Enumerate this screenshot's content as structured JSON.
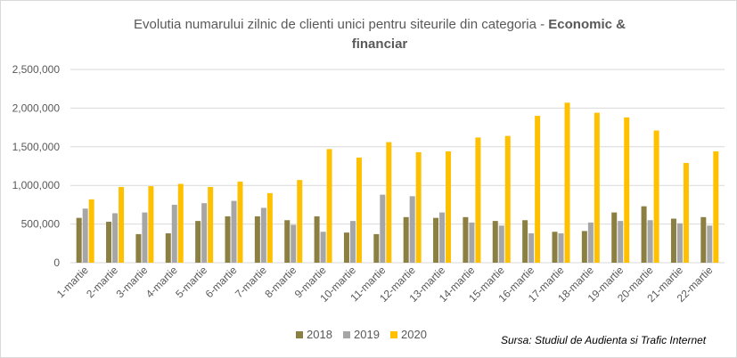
{
  "chart_data": {
    "type": "bar",
    "title": "Evolutia numarului zilnic de clienti unici pentru siteurile din categoria - ",
    "title_bold": "Economic & financiar",
    "title_line1": "Evolutia numarului zilnic de clienti unici pentru siteurile din categoria - ",
    "title_line1_bold": "Economic &",
    "title_line2_bold": "financiar",
    "xlabel": "",
    "ylabel": "",
    "ylim": [
      0,
      2500000
    ],
    "yticks": [
      "0",
      "500,000",
      "1,000,000",
      "1,500,000",
      "2,000,000",
      "2,500,000"
    ],
    "ytick_values": [
      0,
      500000,
      1000000,
      1500000,
      2000000,
      2500000
    ],
    "grid": true,
    "legend_position": "bottom",
    "categories": [
      "1-martie",
      "2-martie",
      "3-martie",
      "4-martie",
      "5-martie",
      "6-martie",
      "7-martie",
      "8-martie",
      "9-martie",
      "10-martie",
      "11-martie",
      "12-martie",
      "13-martie",
      "14-martie",
      "15-martie",
      "16-martie",
      "17-martie",
      "18-martie",
      "19-martie",
      "20-martie",
      "21-martie",
      "22-martie"
    ],
    "series": [
      {
        "name": "2018",
        "color": "#8c7f42",
        "values": [
          580000,
          530000,
          370000,
          380000,
          540000,
          600000,
          600000,
          550000,
          600000,
          390000,
          370000,
          590000,
          580000,
          590000,
          540000,
          550000,
          400000,
          410000,
          650000,
          730000,
          570000,
          590000
        ]
      },
      {
        "name": "2019",
        "color": "#a6a6a6",
        "values": [
          700000,
          640000,
          650000,
          750000,
          770000,
          800000,
          710000,
          490000,
          400000,
          540000,
          880000,
          860000,
          650000,
          520000,
          480000,
          380000,
          380000,
          520000,
          540000,
          550000,
          510000,
          480000
        ]
      },
      {
        "name": "2020",
        "color": "#ffc000",
        "values": [
          820000,
          980000,
          990000,
          1020000,
          980000,
          1050000,
          900000,
          1070000,
          1470000,
          1360000,
          1560000,
          1430000,
          1440000,
          1620000,
          1640000,
          1900000,
          2070000,
          1940000,
          1880000,
          1710000,
          1290000,
          1440000
        ]
      }
    ],
    "source": "Sursa: Studiul de Audienta si Trafic Internet"
  }
}
